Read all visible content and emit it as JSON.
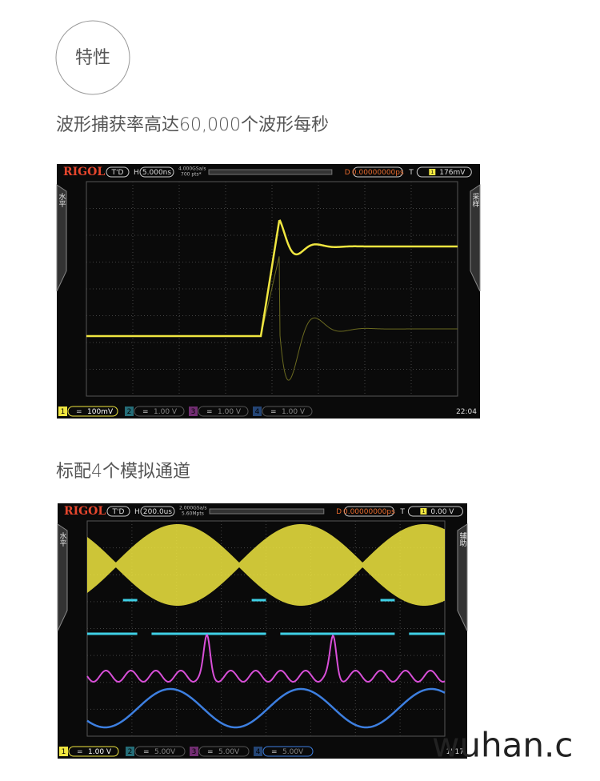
{
  "header": {
    "badge": "特性"
  },
  "sections": [
    {
      "title": "波形捕获率高达60,000个波形每秒",
      "scope": {
        "brand": "RIGOL",
        "mode": "T'D",
        "h_label": "H",
        "timebase": "5.000ns",
        "sample_rate": "4.000GSa/s",
        "memory": "700 pts*",
        "d_label": "D",
        "delay": "0.00000000ps",
        "t_label": "T",
        "trigger_channel": "1",
        "trigger_level": "176mV",
        "left_tab": "水平",
        "right_tab": "采样",
        "channels": [
          {
            "number": "1",
            "coupling": "=",
            "scale": "100mV"
          },
          {
            "number": "2",
            "coupling": "=",
            "scale": "1.00 V"
          },
          {
            "number": "3",
            "coupling": "=",
            "scale": "1.00 V"
          },
          {
            "number": "4",
            "coupling": "=",
            "scale": "1.00 V"
          }
        ],
        "clock": "22:04"
      }
    },
    {
      "title": "标配4个模拟通道",
      "scope": {
        "brand": "RIGOL",
        "mode": "T'D",
        "h_label": "H",
        "timebase": "200.0us",
        "sample_rate": "2.000GSa/s",
        "memory": "5.60Mpts",
        "d_label": "D",
        "delay": "0.00000000ps",
        "t_label": "T",
        "trigger_channel": "1",
        "trigger_level": "0.00 V",
        "left_tab": "水平",
        "right_tab": "辅助",
        "channels": [
          {
            "number": "1",
            "coupling": "=",
            "scale": "1.00 V"
          },
          {
            "number": "2",
            "coupling": "=",
            "scale": "5.00V"
          },
          {
            "number": "3",
            "coupling": "=",
            "scale": "5.00V"
          },
          {
            "number": "4",
            "coupling": "=",
            "scale": "5.00V"
          }
        ],
        "clock": "1' 17"
      }
    }
  ],
  "watermark": "wuhan.c"
}
